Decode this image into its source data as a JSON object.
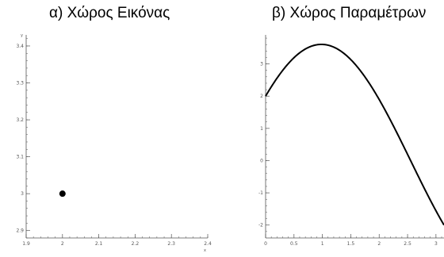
{
  "titles": {
    "left": "α) Χώρος Εικόνας",
    "right": "β) Χώρος Παραμέτρων"
  },
  "chart_data": [
    {
      "type": "scatter",
      "title": "α) Χώρος Εικόνας",
      "xlabel": "x",
      "ylabel": "y",
      "xlim": [
        1.9,
        2.4
      ],
      "ylim": [
        2.88,
        3.43
      ],
      "xticks": [
        "1.9",
        "2",
        "2.1",
        "2.2",
        "2.3",
        "2.4"
      ],
      "yticks": [
        "2.9",
        "3",
        "3.1",
        "3.2",
        "3.3",
        "3.4"
      ],
      "points": [
        {
          "x": 2,
          "y": 3
        }
      ],
      "grid": false,
      "colors": {
        "marker": "#000000",
        "axis": "#555555"
      }
    },
    {
      "type": "line",
      "title": "β) Χώρος Παραμέτρων",
      "xlabel": "",
      "ylabel": "",
      "xlim": [
        0,
        3.14159
      ],
      "ylim": [
        -2.4,
        3.9
      ],
      "xticks": [
        "0",
        "0.5",
        "1",
        "1.5",
        "2",
        "2.5",
        "3"
      ],
      "yticks": [
        "-2",
        "-1",
        "0",
        "1",
        "2",
        "3"
      ],
      "curve": {
        "formula": "r = 2*cos(theta) + 3*sin(theta)",
        "x_from": 0,
        "x_to": 3.14159
      },
      "grid": false,
      "colors": {
        "line": "#000000",
        "axis": "#555555"
      }
    }
  ]
}
